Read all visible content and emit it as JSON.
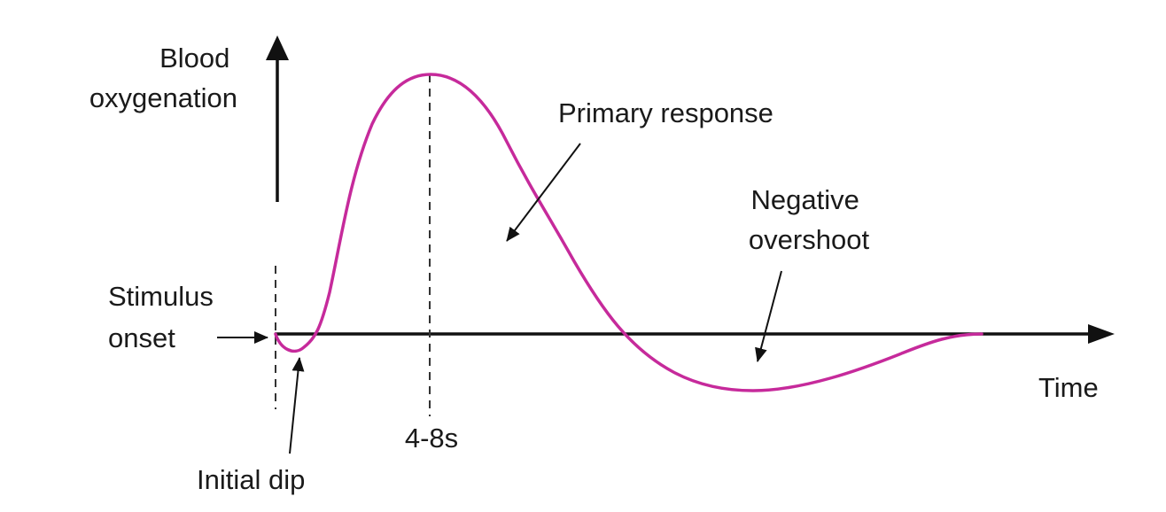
{
  "axes": {
    "y_label": [
      "Blood",
      "oxygenation"
    ],
    "x_label": "Time"
  },
  "markers": {
    "stimulus": [
      "Stimulus",
      "onset"
    ],
    "peak": "4-8s"
  },
  "annotations": {
    "primary": "Primary response",
    "overshoot": [
      "Negative",
      "overshoot"
    ],
    "dip": "Initial dip"
  },
  "colors": {
    "curve": "#c62a9b",
    "axis": "#111111",
    "text": "#1a1a1a"
  }
}
